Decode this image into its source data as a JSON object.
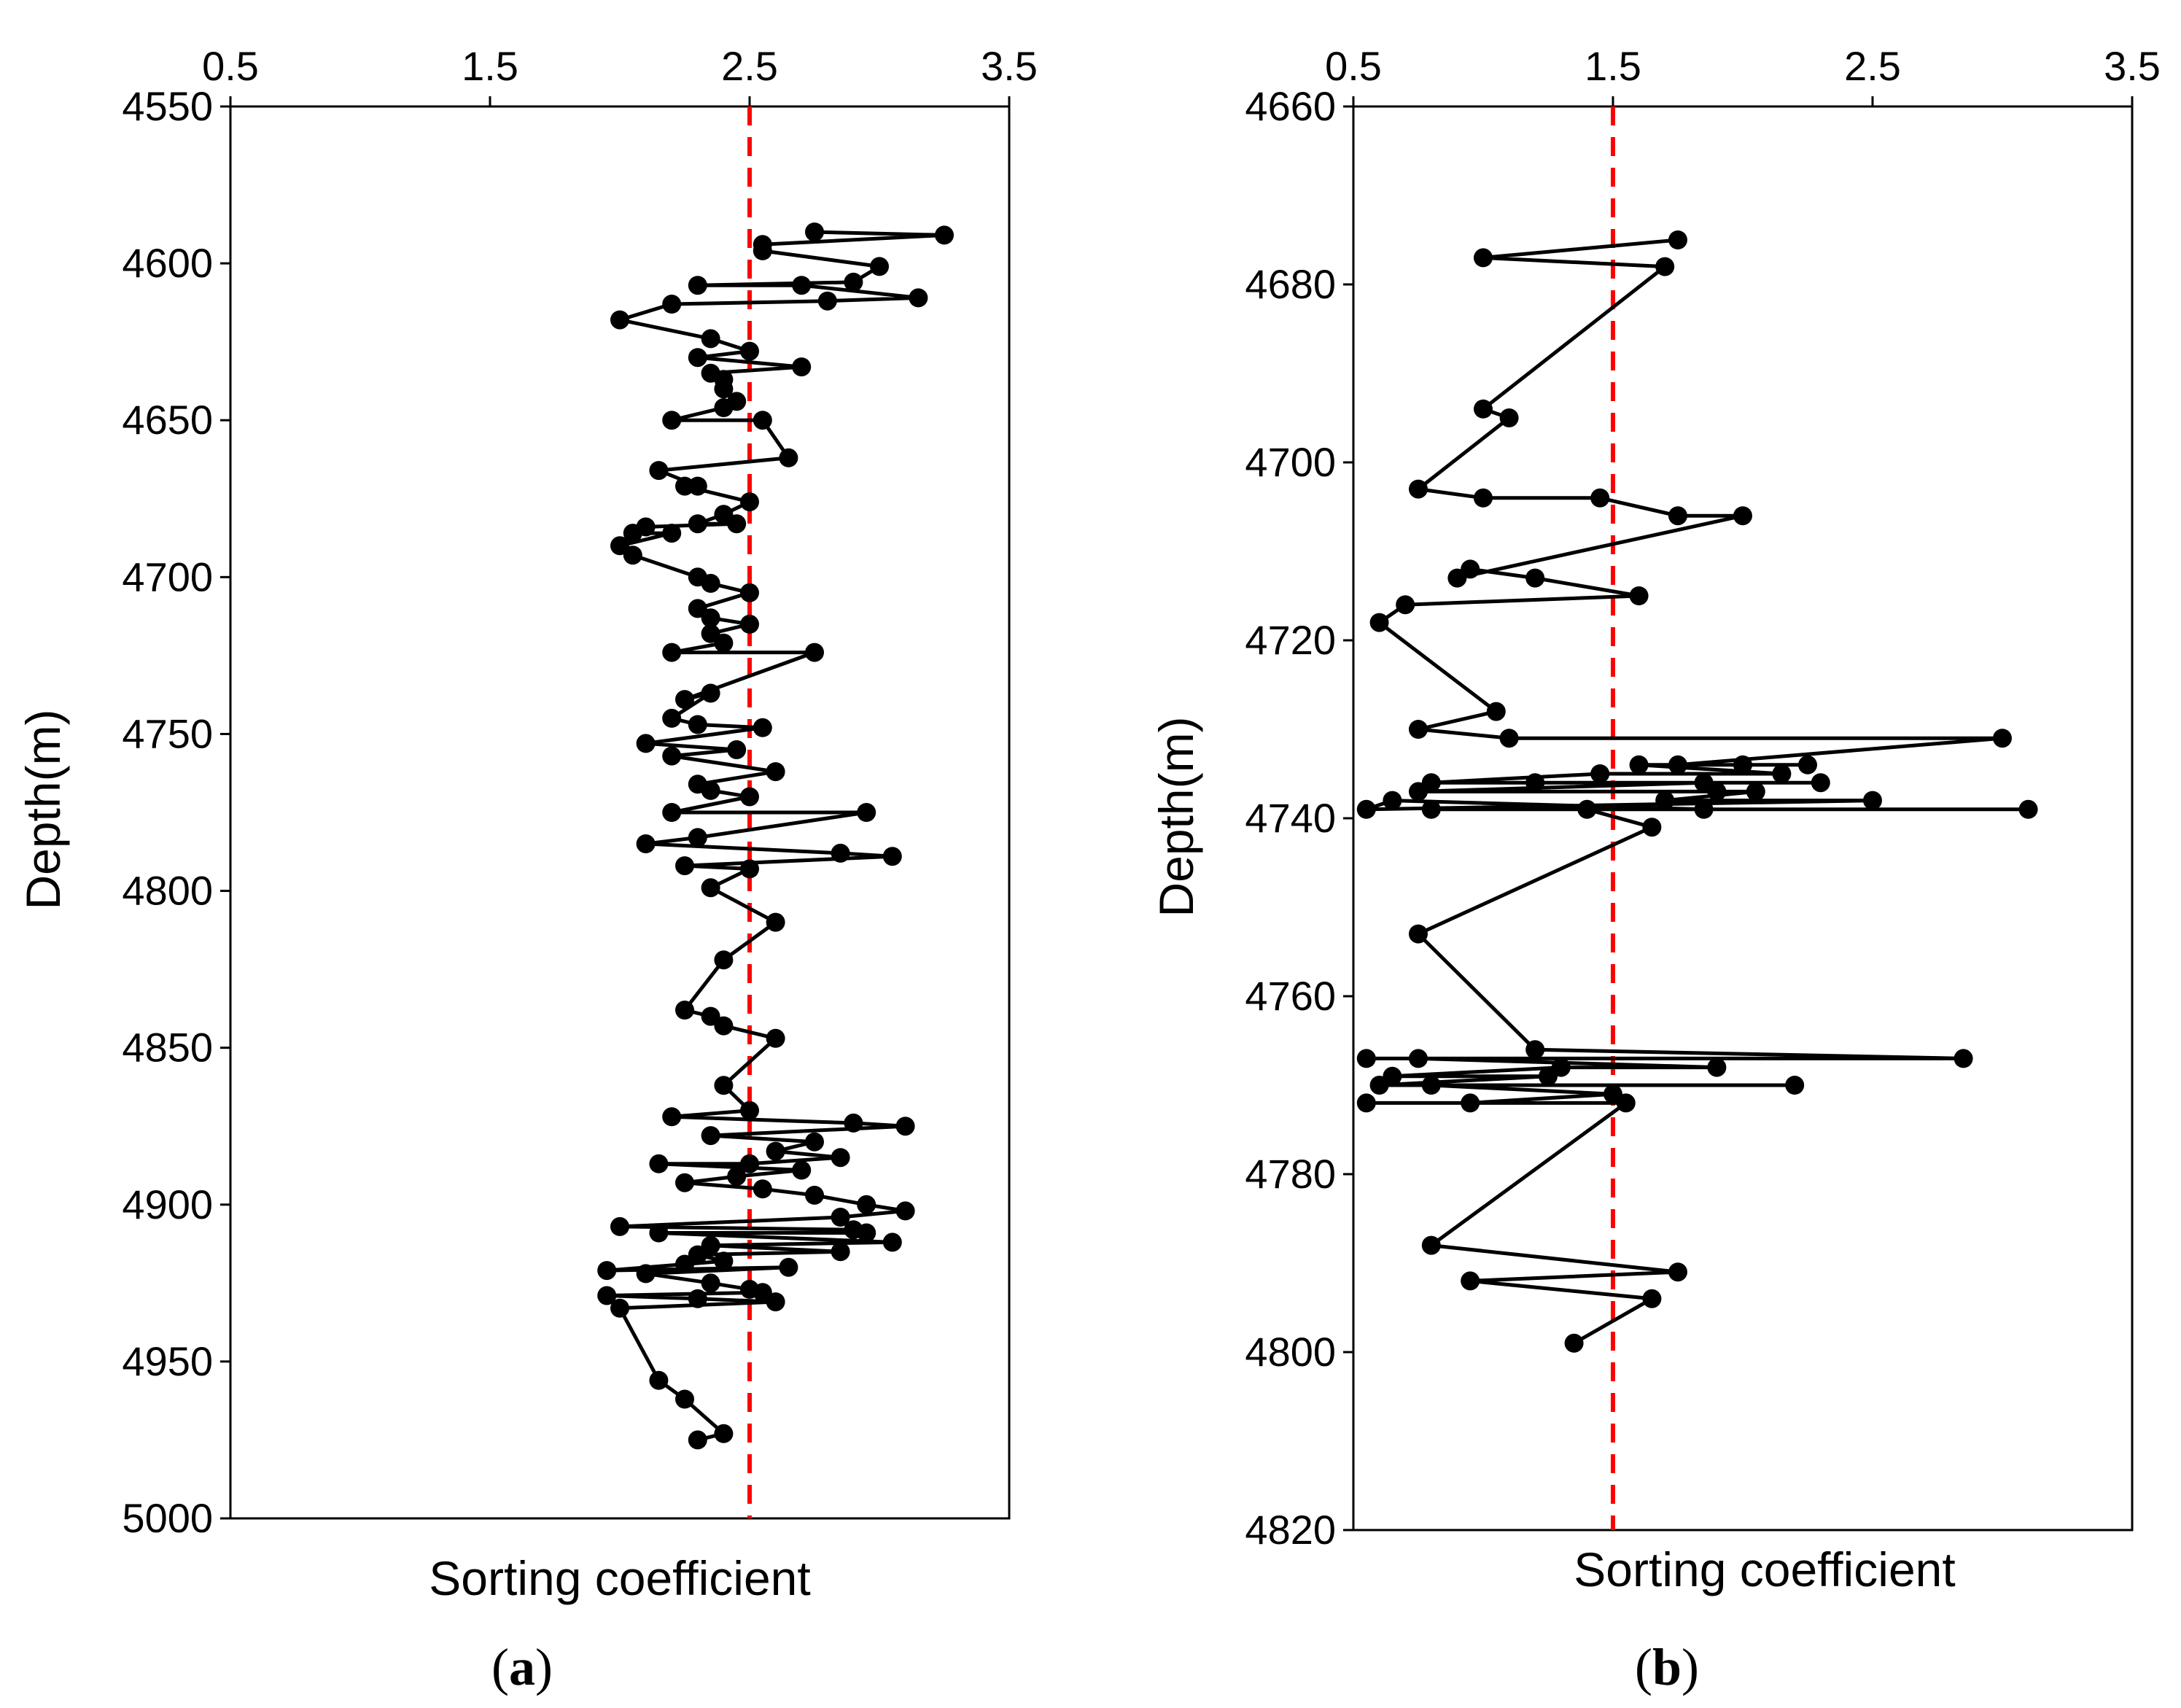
{
  "colors": {
    "series": "#000000",
    "reference": "#ff0000",
    "background": "#ffffff"
  },
  "chart_data": [
    {
      "id": "a",
      "panel_label": "a",
      "type": "line",
      "xlabel": "Sorting coefficient",
      "ylabel": "Depth(m)",
      "xlim": [
        0.5,
        3.5
      ],
      "ylim": [
        4550,
        5000
      ],
      "y_inverted": true,
      "x_ticks": [
        0.5,
        1.5,
        2.5,
        3.5
      ],
      "x_tick_labels": [
        "0.5",
        "1.5",
        "2.5",
        "3.5"
      ],
      "y_ticks": [
        4550,
        4600,
        4650,
        4700,
        4750,
        4800,
        4850,
        4900,
        4950,
        5000
      ],
      "y_tick_labels": [
        "4550",
        "4600",
        "4650",
        "4700",
        "4750",
        "4800",
        "4850",
        "4900",
        "4950",
        "5000"
      ],
      "x_axis_position": "top",
      "reference_line": {
        "x": 2.5,
        "style": "dashed"
      },
      "series": [
        {
          "name": "Sorting coefficient",
          "points": [
            [
              2.75,
              4590
            ],
            [
              3.25,
              4591
            ],
            [
              2.55,
              4594
            ],
            [
              2.55,
              4596
            ],
            [
              3.0,
              4601
            ],
            [
              2.9,
              4606
            ],
            [
              2.3,
              4607
            ],
            [
              2.7,
              4607
            ],
            [
              3.15,
              4611
            ],
            [
              2.8,
              4612
            ],
            [
              2.2,
              4613
            ],
            [
              2.0,
              4618
            ],
            [
              2.35,
              4624
            ],
            [
              2.5,
              4628
            ],
            [
              2.3,
              4630
            ],
            [
              2.7,
              4633
            ],
            [
              2.35,
              4635
            ],
            [
              2.4,
              4637
            ],
            [
              2.4,
              4640
            ],
            [
              2.45,
              4644
            ],
            [
              2.4,
              4646
            ],
            [
              2.2,
              4650
            ],
            [
              2.55,
              4650
            ],
            [
              2.65,
              4662
            ],
            [
              2.15,
              4666
            ],
            [
              2.3,
              4671
            ],
            [
              2.25,
              4671
            ],
            [
              2.5,
              4676
            ],
            [
              2.4,
              4680
            ],
            [
              2.3,
              4683
            ],
            [
              2.45,
              4683
            ],
            [
              2.1,
              4684
            ],
            [
              2.05,
              4686
            ],
            [
              2.2,
              4686
            ],
            [
              2.0,
              4690
            ],
            [
              2.05,
              4693
            ],
            [
              2.3,
              4700
            ],
            [
              2.35,
              4702
            ],
            [
              2.5,
              4705
            ],
            [
              2.3,
              4710
            ],
            [
              2.35,
              4713
            ],
            [
              2.5,
              4715
            ],
            [
              2.35,
              4718
            ],
            [
              2.4,
              4721
            ],
            [
              2.2,
              4724
            ],
            [
              2.75,
              4724
            ],
            [
              2.25,
              4739
            ],
            [
              2.35,
              4737
            ],
            [
              2.2,
              4745
            ],
            [
              2.3,
              4747
            ],
            [
              2.55,
              4748
            ],
            [
              2.1,
              4753
            ],
            [
              2.45,
              4755
            ],
            [
              2.2,
              4757
            ],
            [
              2.6,
              4762
            ],
            [
              2.3,
              4766
            ],
            [
              2.35,
              4768
            ],
            [
              2.5,
              4770
            ],
            [
              2.2,
              4775
            ],
            [
              2.95,
              4775
            ],
            [
              2.3,
              4783
            ],
            [
              2.1,
              4785
            ],
            [
              2.85,
              4788
            ],
            [
              3.05,
              4789
            ],
            [
              2.25,
              4792
            ],
            [
              2.5,
              4793
            ],
            [
              2.35,
              4799
            ],
            [
              2.6,
              4810
            ],
            [
              2.4,
              4822
            ],
            [
              2.25,
              4838
            ],
            [
              2.35,
              4840
            ],
            [
              2.4,
              4843
            ],
            [
              2.6,
              4847
            ],
            [
              2.4,
              4862
            ],
            [
              2.5,
              4870
            ],
            [
              2.2,
              4872
            ],
            [
              2.9,
              4874
            ],
            [
              3.1,
              4875
            ],
            [
              2.35,
              4878
            ],
            [
              2.75,
              4880
            ],
            [
              2.6,
              4883
            ],
            [
              2.85,
              4885
            ],
            [
              2.5,
              4887
            ],
            [
              2.15,
              4887
            ],
            [
              2.7,
              4889
            ],
            [
              2.45,
              4891
            ],
            [
              2.25,
              4893
            ],
            [
              2.55,
              4895
            ],
            [
              2.75,
              4897
            ],
            [
              2.95,
              4900
            ],
            [
              3.1,
              4902
            ],
            [
              2.85,
              4904
            ],
            [
              2.0,
              4907
            ],
            [
              2.9,
              4908
            ],
            [
              2.95,
              4909
            ],
            [
              2.15,
              4909
            ],
            [
              3.05,
              4912
            ],
            [
              2.35,
              4913
            ],
            [
              2.85,
              4915
            ],
            [
              2.3,
              4916
            ],
            [
              2.4,
              4918
            ],
            [
              2.25,
              4919
            ],
            [
              1.95,
              4921
            ],
            [
              2.65,
              4920
            ],
            [
              2.1,
              4922
            ],
            [
              2.35,
              4925
            ],
            [
              2.5,
              4927
            ],
            [
              2.55,
              4928
            ],
            [
              1.95,
              4929
            ],
            [
              2.3,
              4930
            ],
            [
              2.6,
              4931
            ],
            [
              2.0,
              4933
            ],
            [
              2.15,
              4956
            ],
            [
              2.25,
              4962
            ],
            [
              2.4,
              4973
            ],
            [
              2.3,
              4975
            ]
          ]
        }
      ]
    },
    {
      "id": "b",
      "panel_label": "b",
      "type": "line",
      "xlabel": "Sorting coefficient",
      "ylabel": "Depth(m)",
      "xlim": [
        0.5,
        3.5
      ],
      "ylim": [
        4660,
        4820
      ],
      "y_inverted": true,
      "x_ticks": [
        0.5,
        1.5,
        2.5,
        3.5
      ],
      "x_tick_labels": [
        "0.5",
        "1.5",
        "2.5",
        "3.5"
      ],
      "y_ticks": [
        4660,
        4680,
        4700,
        4720,
        4740,
        4760,
        4780,
        4800,
        4820
      ],
      "y_tick_labels": [
        "4660",
        "4680",
        "4700",
        "4720",
        "4740",
        "4760",
        "4780",
        "4800",
        "4820"
      ],
      "x_axis_position": "top",
      "reference_line": {
        "x": 1.5,
        "style": "dashed"
      },
      "series": [
        {
          "name": "Sorting coefficient",
          "points": [
            [
              1.75,
              4675
            ],
            [
              1.0,
              4677
            ],
            [
              1.7,
              4678
            ],
            [
              1.0,
              4694
            ],
            [
              1.1,
              4695
            ],
            [
              0.75,
              4703
            ],
            [
              1.0,
              4704
            ],
            [
              1.45,
              4704
            ],
            [
              1.75,
              4706
            ],
            [
              2.0,
              4706
            ],
            [
              0.9,
              4713
            ],
            [
              0.95,
              4712
            ],
            [
              1.2,
              4713
            ],
            [
              1.6,
              4715
            ],
            [
              0.7,
              4716
            ],
            [
              0.6,
              4718
            ],
            [
              1.05,
              4728
            ],
            [
              0.75,
              4730
            ],
            [
              1.1,
              4731
            ],
            [
              3.0,
              4731
            ],
            [
              1.75,
              4734
            ],
            [
              2.0,
              4734
            ],
            [
              2.25,
              4734
            ],
            [
              1.6,
              4734
            ],
            [
              2.15,
              4735
            ],
            [
              1.45,
              4735
            ],
            [
              0.8,
              4736
            ],
            [
              1.2,
              4736
            ],
            [
              2.3,
              4736
            ],
            [
              1.85,
              4736
            ],
            [
              0.75,
              4737
            ],
            [
              1.9,
              4737
            ],
            [
              2.05,
              4737
            ],
            [
              1.7,
              4738
            ],
            [
              2.5,
              4738
            ],
            [
              0.55,
              4739
            ],
            [
              0.65,
              4738
            ],
            [
              1.85,
              4739
            ],
            [
              3.1,
              4739
            ],
            [
              0.8,
              4739
            ],
            [
              1.4,
              4739
            ],
            [
              1.65,
              4741
            ],
            [
              0.75,
              4753
            ],
            [
              1.2,
              4766
            ],
            [
              2.85,
              4767
            ],
            [
              0.55,
              4767
            ],
            [
              0.75,
              4767
            ],
            [
              1.9,
              4768
            ],
            [
              1.3,
              4768
            ],
            [
              0.65,
              4769
            ],
            [
              1.25,
              4769
            ],
            [
              0.6,
              4770
            ],
            [
              2.2,
              4770
            ],
            [
              0.8,
              4770
            ],
            [
              1.5,
              4771
            ],
            [
              0.95,
              4772
            ],
            [
              0.55,
              4772
            ],
            [
              1.55,
              4772
            ],
            [
              0.8,
              4788
            ],
            [
              1.75,
              4791
            ],
            [
              0.95,
              4792
            ],
            [
              1.65,
              4794
            ],
            [
              1.35,
              4799
            ]
          ]
        }
      ]
    }
  ]
}
